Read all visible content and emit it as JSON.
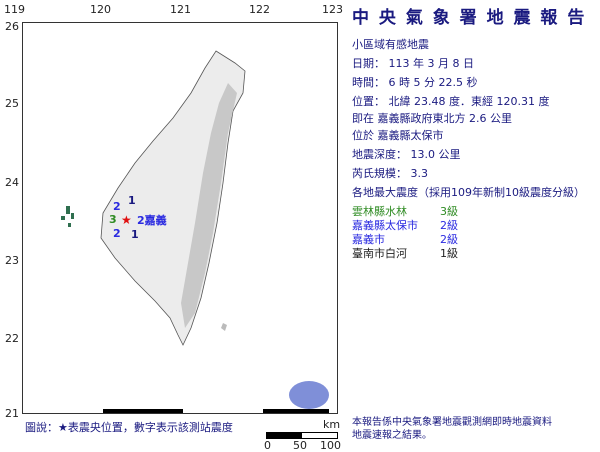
{
  "report": {
    "title": "中 央 氣 象 署 地 震 報 告",
    "type": "小區域有感地震",
    "date": "日期： 113 年 3 月 8 日",
    "time": "時間： 6 時 5 分 22.5 秒",
    "position": "位置： 北緯 23.48 度．東經 120.31 度",
    "relative": "即在 嘉義縣政府東北方 2.6 公里",
    "located": "位於 嘉義縣太保市",
    "depth": "地震深度： 13.0 公里",
    "magnitude": "芮氏規模： 3.3",
    "intensity_header": "各地最大震度（採用109年新制10級震度分級）",
    "intensities": [
      {
        "place": "雲林縣水林",
        "level": "3級",
        "color": "#2e8b22"
      },
      {
        "place": "嘉義縣太保市",
        "level": "2級",
        "color": "#2a2ae0"
      },
      {
        "place": "嘉義市",
        "level": "2級",
        "color": "#2a2ae0"
      },
      {
        "place": "臺南市白河",
        "level": "1級",
        "color": "#222222"
      }
    ],
    "footnote_1": "本報告係中央氣象署地震觀測網即時地震資料",
    "footnote_2": "地震速報之結果。"
  },
  "map": {
    "lon_ticks": [
      "119",
      "120",
      "121",
      "122",
      "123"
    ],
    "lat_ticks": [
      "26",
      "25",
      "24",
      "23",
      "22",
      "21"
    ],
    "legend": "圖說：★表震央位置，數字表示該測站震度",
    "legend_star": "★",
    "scale_unit": "km",
    "scale_labels": [
      "0",
      "50",
      "100"
    ],
    "stations": [
      {
        "label": "1",
        "color": "#222222"
      },
      {
        "label": "2",
        "color": "#2a2ae0"
      },
      {
        "label": "3",
        "color": "#2e8b22"
      },
      {
        "label": "2嘉義",
        "color": "#2a2ae0"
      },
      {
        "label": "2",
        "color": "#2a2ae0"
      },
      {
        "label": "1",
        "color": "#222222"
      }
    ],
    "epicenter_color": "#e01010"
  }
}
